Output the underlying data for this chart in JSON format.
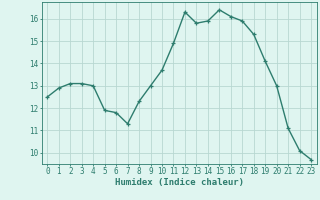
{
  "x": [
    0,
    1,
    2,
    3,
    4,
    5,
    6,
    7,
    8,
    9,
    10,
    11,
    12,
    13,
    14,
    15,
    16,
    17,
    18,
    19,
    20,
    21,
    22,
    23
  ],
  "y": [
    12.5,
    12.9,
    13.1,
    13.1,
    13.0,
    11.9,
    11.8,
    11.3,
    12.3,
    13.0,
    13.7,
    14.9,
    16.3,
    15.8,
    15.9,
    16.4,
    16.1,
    15.9,
    15.3,
    14.1,
    13.0,
    11.1,
    10.1,
    9.7
  ],
  "line_color": "#2e7d6e",
  "marker_color": "#2e7d6e",
  "bg_color": "#dff5f0",
  "grid_major_color": "#b8d8d2",
  "grid_minor_color": "#cce8e3",
  "xlabel": "Humidex (Indice chaleur)",
  "xlim": [
    -0.5,
    23.5
  ],
  "ylim": [
    9.5,
    16.75
  ],
  "yticks": [
    10,
    11,
    12,
    13,
    14,
    15,
    16
  ],
  "xticks": [
    0,
    1,
    2,
    3,
    4,
    5,
    6,
    7,
    8,
    9,
    10,
    11,
    12,
    13,
    14,
    15,
    16,
    17,
    18,
    19,
    20,
    21,
    22,
    23
  ],
  "axis_color": "#2e7d6e",
  "font_size_xlabel": 6.5,
  "font_size_ticks": 5.5
}
